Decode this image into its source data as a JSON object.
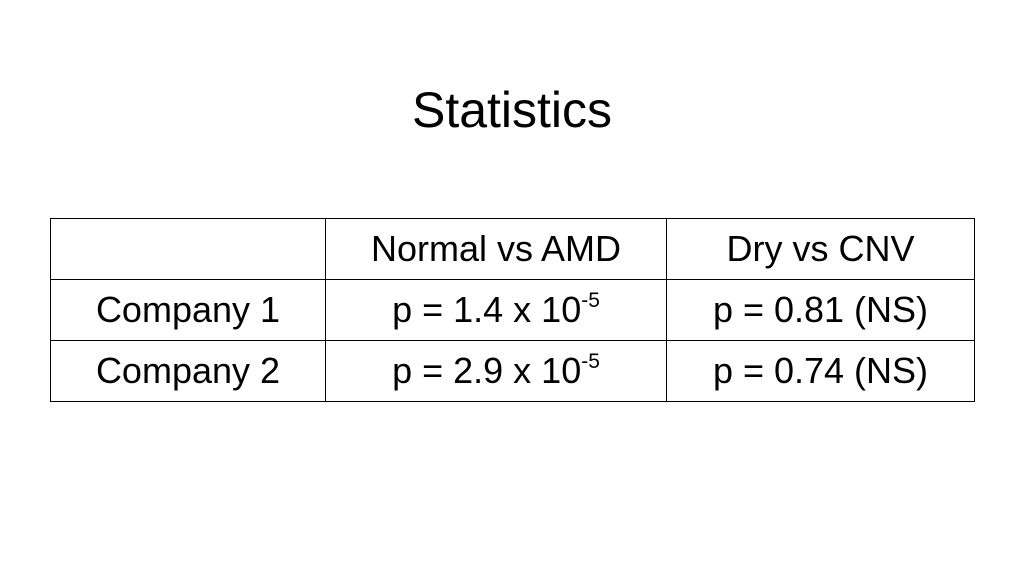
{
  "title": "Statistics",
  "table": {
    "headers": [
      "",
      "Normal vs AMD",
      "Dry vs CNV"
    ],
    "rows": [
      {
        "label": "Company 1",
        "normal_vs_amd": {
          "base": "p = 1.4 x 10",
          "exponent": "-5"
        },
        "dry_vs_cnv": "p = 0.81 (NS)"
      },
      {
        "label": "Company 2",
        "normal_vs_amd": {
          "base": "p = 2.9 x 10",
          "exponent": "-5"
        },
        "dry_vs_cnv": "p = 0.74 (NS)"
      }
    ]
  }
}
